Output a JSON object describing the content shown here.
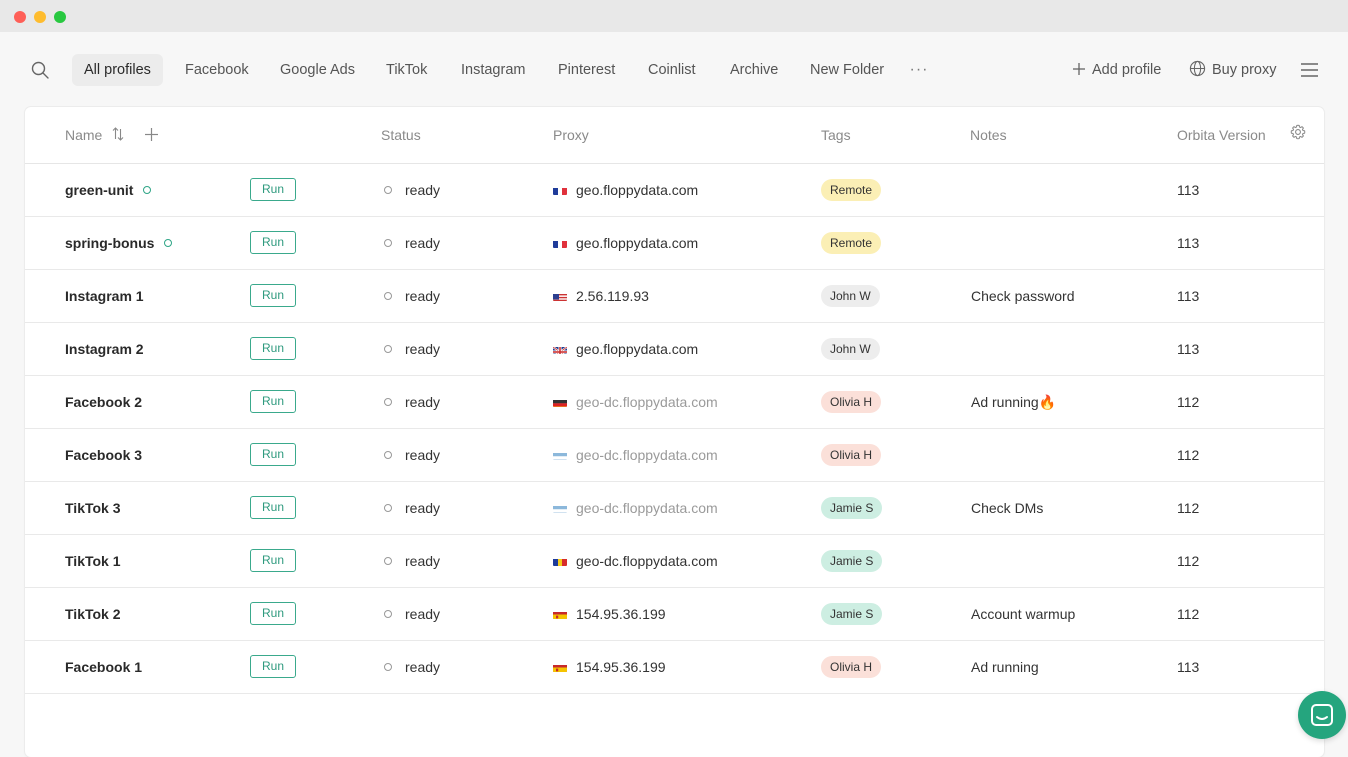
{
  "toolbar": {
    "tabs": [
      {
        "label": "All profiles"
      },
      {
        "label": "Facebook"
      },
      {
        "label": "Google Ads"
      },
      {
        "label": "TikTok"
      },
      {
        "label": "Instagram"
      },
      {
        "label": "Pinterest"
      },
      {
        "label": "Coinlist"
      },
      {
        "label": "Archive"
      },
      {
        "label": "New Folder"
      }
    ],
    "more_label": "···",
    "add_profile": "Add profile",
    "buy_proxy": "Buy proxy"
  },
  "table": {
    "headers": {
      "name": "Name",
      "status": "Status",
      "proxy": "Proxy",
      "tags": "Tags",
      "notes": "Notes",
      "version": "Orbita Version"
    },
    "run_label": "Run",
    "rows": [
      {
        "name": "green-unit",
        "online": true,
        "status": "ready",
        "flag": "fr",
        "proxy": "geo.floppydata.com",
        "proxy_dim": false,
        "tag": "Remote",
        "tag_color": "#fbefb5",
        "note": "",
        "version": "113"
      },
      {
        "name": "spring-bonus",
        "online": true,
        "status": "ready",
        "flag": "fr",
        "proxy": "geo.floppydata.com",
        "proxy_dim": false,
        "tag": "Remote",
        "tag_color": "#fbefb5",
        "note": "",
        "version": "113"
      },
      {
        "name": "Instagram 1",
        "online": false,
        "status": "ready",
        "flag": "us",
        "proxy": "2.56.119.93",
        "proxy_dim": false,
        "tag": "John W",
        "tag_color": "#ededed",
        "note": "Check password",
        "version": "113"
      },
      {
        "name": "Instagram 2",
        "online": false,
        "status": "ready",
        "flag": "gb",
        "proxy": "geo.floppydata.com",
        "proxy_dim": false,
        "tag": "John W",
        "tag_color": "#ededed",
        "note": "",
        "version": "113"
      },
      {
        "name": "Facebook 2",
        "online": false,
        "status": "ready",
        "flag": "de",
        "proxy": "geo-dc.floppydata.com",
        "proxy_dim": true,
        "tag": "Olivia H",
        "tag_color": "#fbe0d9",
        "note": "Ad running🔥",
        "version": "112"
      },
      {
        "name": "Facebook 3",
        "online": false,
        "status": "ready",
        "flag": "ar",
        "proxy": "geo-dc.floppydata.com",
        "proxy_dim": true,
        "tag": "Olivia H",
        "tag_color": "#fbe0d9",
        "note": "",
        "version": "112"
      },
      {
        "name": "TikTok 3",
        "online": false,
        "status": "ready",
        "flag": "ar",
        "proxy": "geo-dc.floppydata.com",
        "proxy_dim": true,
        "tag": "Jamie S",
        "tag_color": "#cdeee2",
        "note": "Check DMs",
        "version": "112"
      },
      {
        "name": "TikTok 1",
        "online": false,
        "status": "ready",
        "flag": "ro",
        "proxy": "geo-dc.floppydata.com",
        "proxy_dim": false,
        "tag": "Jamie S",
        "tag_color": "#cdeee2",
        "note": "",
        "version": "112"
      },
      {
        "name": "TikTok 2",
        "online": false,
        "status": "ready",
        "flag": "es",
        "proxy": "154.95.36.199",
        "proxy_dim": false,
        "tag": "Jamie S",
        "tag_color": "#cdeee2",
        "note": "Account warmup",
        "version": "112"
      },
      {
        "name": "Facebook 1",
        "online": false,
        "status": "ready",
        "flag": "es",
        "proxy": "154.95.36.199",
        "proxy_dim": false,
        "tag": "Olivia H",
        "tag_color": "#fbe0d9",
        "note": "Ad running",
        "version": "113"
      }
    ]
  },
  "colors": {
    "accent": "#25a57e",
    "run_border": "#3aa98c"
  },
  "icons": [
    "search-icon",
    "plus-icon",
    "globe-icon",
    "menu-icon",
    "sort-icon",
    "add-column-icon",
    "settings-gear-icon",
    "chat-icon",
    "flag-icon"
  ]
}
